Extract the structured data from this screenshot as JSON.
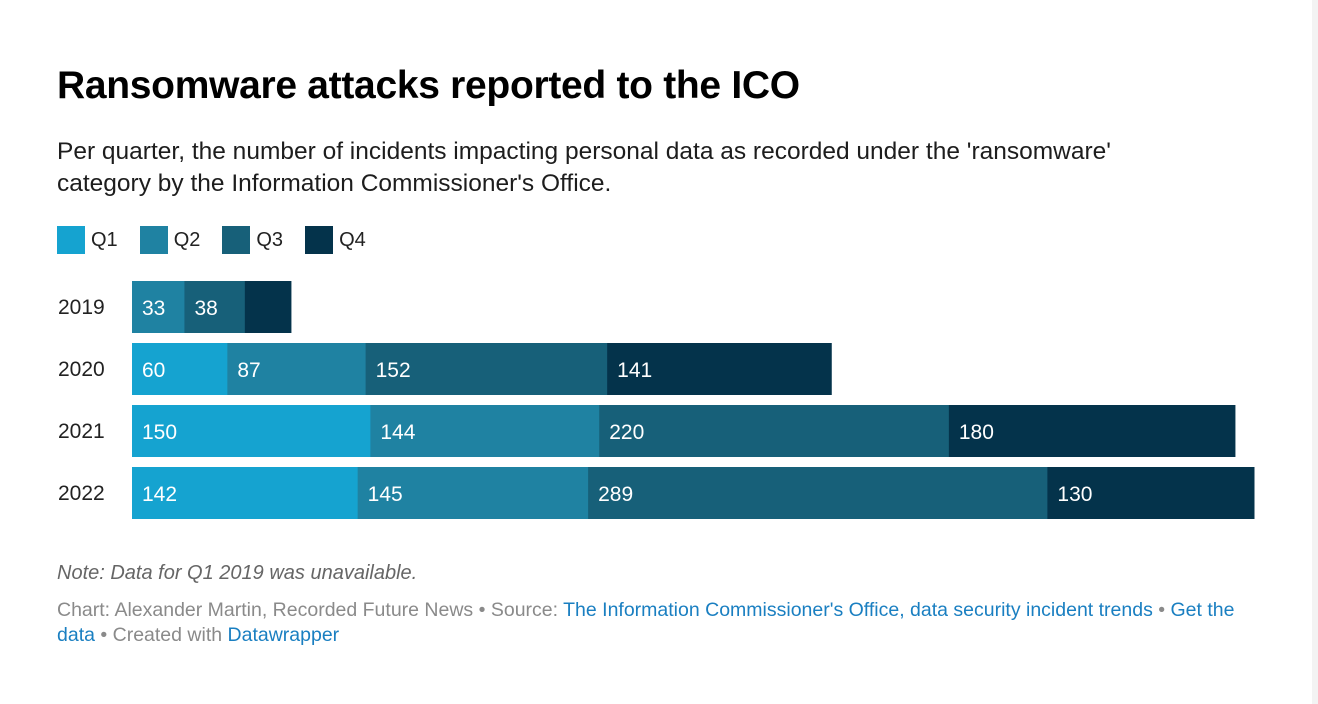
{
  "title": "Ransomware attacks reported to the ICO",
  "subtitle": "Per quarter, the number of incidents impacting personal data as recorded under the 'ransomware' category by the Information Commissioner's Office.",
  "note": "Note: Data for Q1 2019 was unavailable.",
  "footer": {
    "chart_prefix": "Chart: Alexander Martin, Recorded Future News",
    "sep": " • ",
    "source_prefix": "Source: ",
    "source_link": "The Information Commissioner's Office, data security incident trends",
    "get_data": "Get the data",
    "created_with": "Created with ",
    "datawrapper": "Datawrapper"
  },
  "colors": {
    "Q1": "#15a3d0",
    "Q2": "#1f82a2",
    "Q3": "#176079",
    "Q4": "#04334b"
  },
  "chart_data": {
    "type": "bar",
    "orientation": "horizontal",
    "stacked": true,
    "categories": [
      "2019",
      "2020",
      "2021",
      "2022"
    ],
    "series": [
      {
        "name": "Q1",
        "values": [
          null,
          60,
          150,
          142
        ]
      },
      {
        "name": "Q2",
        "values": [
          33,
          87,
          144,
          145
        ]
      },
      {
        "name": "Q3",
        "values": [
          38,
          152,
          220,
          289
        ]
      },
      {
        "name": "Q4",
        "values": [
          29,
          141,
          180,
          130
        ]
      }
    ],
    "legend": "top-left",
    "grid": false,
    "xlim": [
      0,
      706
    ]
  }
}
